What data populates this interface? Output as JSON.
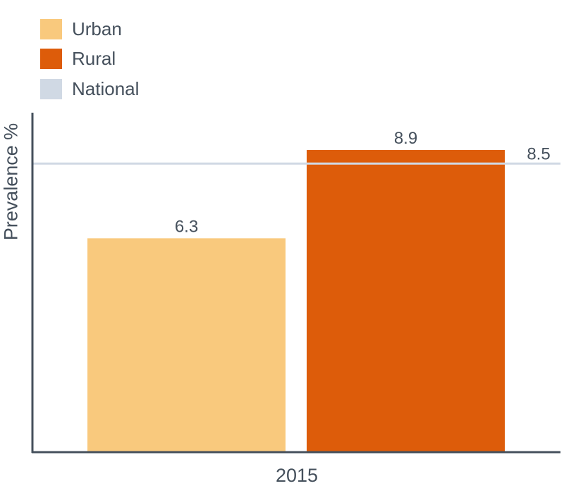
{
  "chart_data": {
    "type": "bar",
    "categories": [
      "2015"
    ],
    "series": [
      {
        "name": "Urban",
        "values": [
          6.3
        ],
        "color": "#f9c97d"
      },
      {
        "name": "Rural",
        "values": [
          8.9
        ],
        "color": "#dd5c0a"
      }
    ],
    "reference_line": {
      "name": "National",
      "value": 8.5,
      "label": "8.5",
      "color": "#d0d9e4"
    },
    "ylabel": "Prevalence %",
    "xlabel": "",
    "ylim": [
      0,
      10
    ],
    "grid": false,
    "legend_position": "top-left",
    "axis_color": "#45505c",
    "text_color": "#45505c"
  }
}
